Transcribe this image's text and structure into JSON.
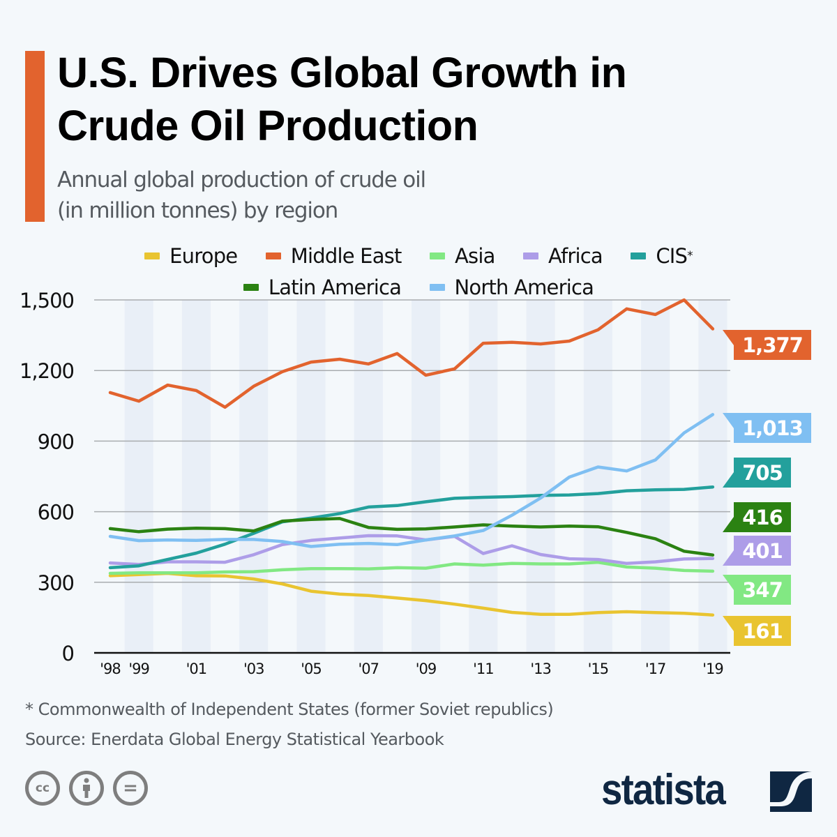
{
  "header": {
    "title_line1": "U.S. Drives Global Growth in",
    "title_line2": "Crude Oil Production",
    "subtitle_line1": "Annual global production of crude oil",
    "subtitle_line2": "(in million tonnes) by region",
    "accent_color": "#e2632e"
  },
  "chart_data": {
    "type": "line",
    "title": "U.S. Drives Global Growth in Crude Oil Production",
    "subtitle": "Annual global production of crude oil (in million tonnes) by region",
    "xlabel": "",
    "ylabel": "",
    "x": [
      1998,
      1999,
      2000,
      2001,
      2002,
      2003,
      2004,
      2005,
      2006,
      2007,
      2008,
      2009,
      2010,
      2011,
      2012,
      2013,
      2014,
      2015,
      2016,
      2017,
      2018,
      2019
    ],
    "x_tick_labels": [
      "'98",
      "'99",
      "'01",
      "'03",
      "'05",
      "'07",
      "'09",
      "'11",
      "'13",
      "'15",
      "'17",
      "'19"
    ],
    "x_tick_years": [
      1998,
      1999,
      2001,
      2003,
      2005,
      2007,
      2009,
      2011,
      2013,
      2015,
      2017,
      2019
    ],
    "y_ticks": [
      0,
      300,
      600,
      900,
      1200,
      1500
    ],
    "y_tick_labels": [
      "0",
      "300",
      "600",
      "900",
      "1,200",
      "1,500"
    ],
    "ylim": [
      0,
      1500
    ],
    "grid": true,
    "legend_position": "top-center",
    "series": [
      {
        "name": "Europe",
        "color": "#e9c430",
        "end_label": "161",
        "values": [
          328,
          333,
          338,
          328,
          327,
          314,
          293,
          262,
          250,
          244,
          233,
          222,
          207,
          190,
          172,
          164,
          164,
          171,
          175,
          171,
          168,
          161
        ]
      },
      {
        "name": "Middle East",
        "color": "#e2632e",
        "end_label": "1,377",
        "values": [
          1106,
          1070,
          1138,
          1115,
          1044,
          1133,
          1195,
          1236,
          1248,
          1228,
          1272,
          1180,
          1207,
          1316,
          1320,
          1313,
          1325,
          1373,
          1462,
          1438,
          1500,
          1377
        ]
      },
      {
        "name": "Asia",
        "color": "#82e883",
        "end_label": "347",
        "values": [
          338,
          340,
          340,
          340,
          344,
          345,
          353,
          358,
          358,
          357,
          362,
          360,
          378,
          373,
          380,
          378,
          378,
          385,
          365,
          360,
          350,
          347
        ]
      },
      {
        "name": "Africa",
        "color": "#ad9de8",
        "end_label": "401",
        "values": [
          382,
          376,
          387,
          387,
          385,
          417,
          460,
          478,
          488,
          498,
          497,
          480,
          495,
          422,
          455,
          418,
          400,
          397,
          380,
          387,
          399,
          401
        ]
      },
      {
        "name": "CIS*",
        "color": "#23a09c",
        "end_label": "705",
        "values": [
          362,
          370,
          397,
          424,
          462,
          508,
          557,
          573,
          592,
          620,
          626,
          642,
          657,
          661,
          664,
          669,
          671,
          677,
          689,
          693,
          695,
          705
        ]
      },
      {
        "name": "Latin America",
        "color": "#2b8212",
        "end_label": "416",
        "values": [
          528,
          515,
          526,
          530,
          528,
          518,
          560,
          567,
          571,
          533,
          525,
          527,
          535,
          544,
          539,
          535,
          539,
          536,
          512,
          485,
          432,
          416
        ]
      },
      {
        "name": "North America",
        "color": "#7fbff2",
        "end_label": "1,013",
        "values": [
          495,
          477,
          480,
          478,
          482,
          482,
          473,
          452,
          462,
          465,
          460,
          480,
          497,
          520,
          585,
          658,
          747,
          790,
          773,
          820,
          935,
          1013
        ]
      }
    ]
  },
  "legend": {
    "row1": [
      {
        "label": "Europe",
        "color": "#e9c430"
      },
      {
        "label": "Middle East",
        "color": "#e2632e"
      },
      {
        "label": "Asia",
        "color": "#82e883"
      },
      {
        "label": "Africa",
        "color": "#ad9de8"
      },
      {
        "label": "CIS",
        "sup": "*",
        "color": "#23a09c"
      }
    ],
    "row2": [
      {
        "label": "Latin America",
        "color": "#2b8212"
      },
      {
        "label": "North America",
        "color": "#7fbff2"
      }
    ]
  },
  "footer": {
    "footnote": "* Commonwealth of Independent States (former Soviet republics)",
    "source": "Source: Enerdata Global Energy Statistical Yearbook",
    "license_icons": [
      "cc-icon",
      "attribution-icon",
      "no-derivatives-icon"
    ],
    "cc_label": "cc",
    "equals_label": "=",
    "brand": "statista",
    "brand_color": "#0f2742"
  }
}
